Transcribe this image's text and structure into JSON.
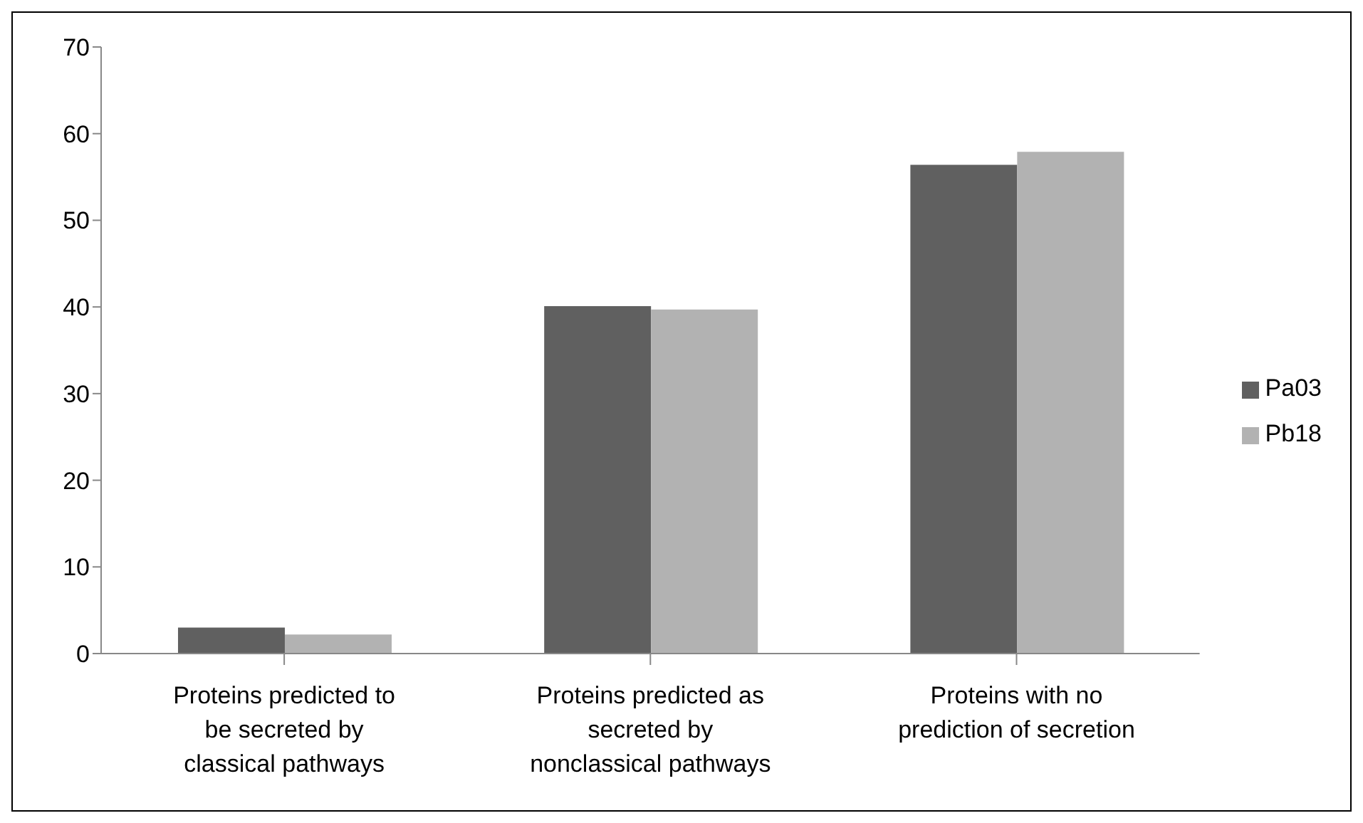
{
  "chart_data": {
    "type": "bar",
    "categories": [
      "Proteins predicted to be secreted by classical pathways",
      "Proteins predicted as secreted by nonclassical pathways",
      "Proteins with no prediction of secretion"
    ],
    "series": [
      {
        "name": "Pa03",
        "color": "#606060",
        "values": [
          3.0,
          40.1,
          56.4
        ]
      },
      {
        "name": "Pb18",
        "color": "#b2b2b2",
        "values": [
          2.2,
          39.7,
          57.9
        ]
      }
    ],
    "ylim": [
      0,
      70
    ],
    "yticks": [
      0,
      10,
      20,
      30,
      40,
      50,
      60,
      70
    ],
    "grid": false,
    "legend": "right"
  }
}
